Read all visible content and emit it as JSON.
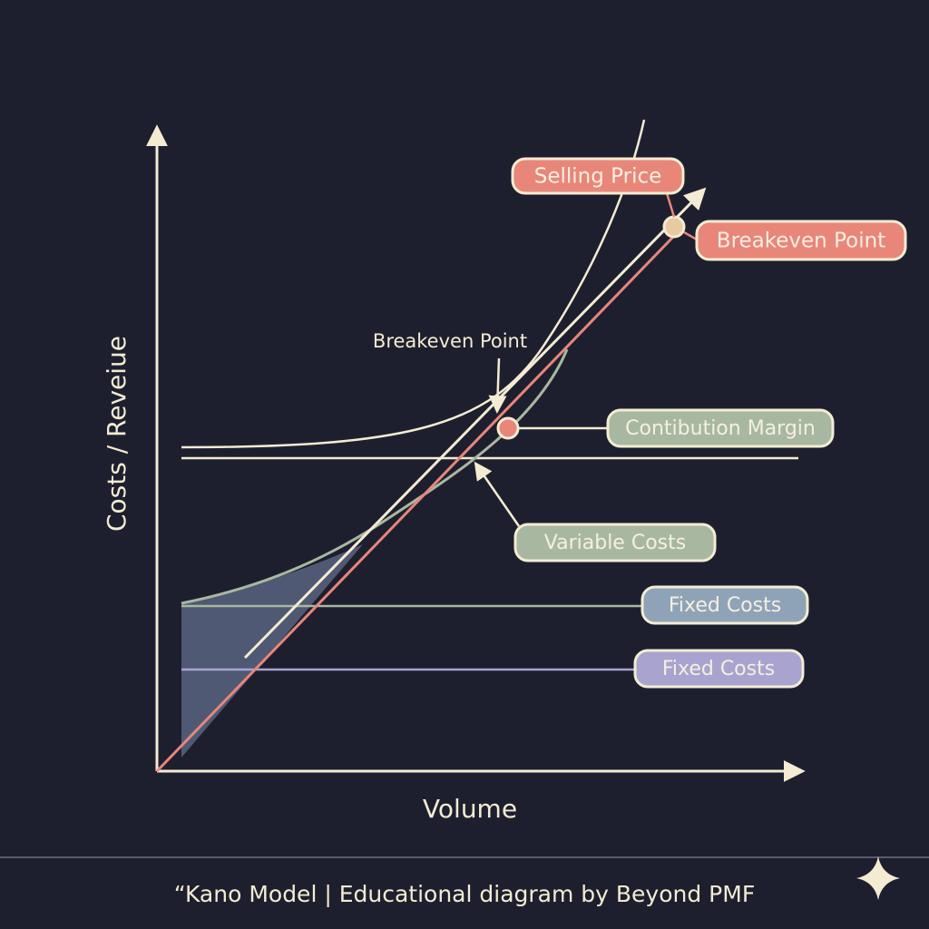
{
  "diagram": {
    "axes": {
      "y_label": "Costs / Reveiue",
      "x_label": "Volume"
    },
    "labels": [
      {
        "text": "Selling Price"
      },
      {
        "text": "Breakeven Point"
      },
      {
        "text": "Contibution Margin"
      },
      {
        "text": "Variable Costs"
      },
      {
        "text": "Fixed Costs"
      },
      {
        "text": "Fixed Costs"
      }
    ],
    "annotation": "Breakeven Point"
  },
  "footer": {
    "caption": "“Kano Model | Educational diagram by Beyond PMF"
  }
}
